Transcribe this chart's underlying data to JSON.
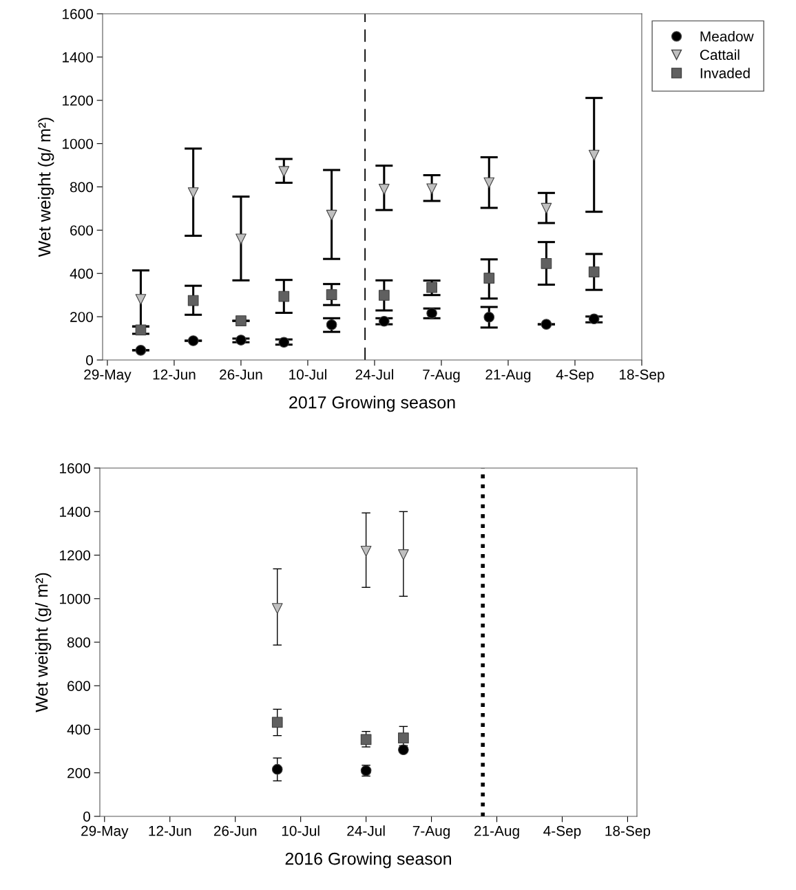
{
  "chart_data": [
    {
      "type": "scatter",
      "xlabel": "2017 Growing season",
      "ylabel": "Wet weight (g/ m²)",
      "xlim": [
        "2017-05-28",
        "2017-09-18"
      ],
      "xticks": [
        {
          "value": "2017-05-29",
          "label": "29-May"
        },
        {
          "value": "2017-06-12",
          "label": "12-Jun"
        },
        {
          "value": "2017-06-26",
          "label": "26-Jun"
        },
        {
          "value": "2017-07-10",
          "label": "10-Jul"
        },
        {
          "value": "2017-07-24",
          "label": "24-Jul"
        },
        {
          "value": "2017-08-07",
          "label": "7-Aug"
        },
        {
          "value": "2017-08-21",
          "label": "21-Aug"
        },
        {
          "value": "2017-09-04",
          "label": "4-Sep"
        },
        {
          "value": "2017-09-18",
          "label": "18-Sep"
        }
      ],
      "ylim": [
        0,
        1600
      ],
      "yticks": [
        0,
        200,
        400,
        600,
        800,
        1000,
        1200,
        1400,
        1600
      ],
      "grid": false,
      "legend": "top right",
      "ref_lines": [
        {
          "axis": "x",
          "value": "2017-07-22",
          "color": "#000000",
          "line_style": "dashed"
        }
      ],
      "x": [
        "2017-06-05",
        "2017-06-16",
        "2017-06-26",
        "2017-07-05",
        "2017-07-15",
        "2017-07-26",
        "2017-08-05",
        "2017-08-17",
        "2017-08-29",
        "2017-09-08"
      ],
      "series": [
        {
          "name": "Meadow",
          "color": "#000000",
          "marker": "circle",
          "values": [
            45,
            89,
            92,
            82,
            163,
            179,
            216,
            198,
            165,
            190
          ],
          "errors": [
            null,
            null,
            [
              82,
              99
            ],
            [
              71,
              95
            ],
            [
              130,
              193
            ],
            [
              165,
              193
            ],
            [
              193,
              238
            ],
            [
              150,
              245
            ],
            null,
            [
              174,
              201
            ]
          ]
        },
        {
          "name": "Cattail",
          "color": "#c0c0c0",
          "marker": "triangle",
          "values": [
            280,
            773,
            559,
            871,
            669,
            789,
            791,
            819,
            701,
            946
          ],
          "errors": [
            [
              155,
              414
            ],
            [
              574,
              977
            ],
            [
              368,
              755
            ],
            [
              819,
              929
            ],
            [
              467,
              878
            ],
            [
              693,
              898
            ],
            [
              735,
              854
            ],
            [
              703,
              937
            ],
            [
              633,
              772
            ],
            [
              685,
              1211
            ]
          ]
        },
        {
          "name": "Invaded",
          "color": "#606060",
          "marker": "square",
          "values": [
            139,
            275,
            181,
            294,
            302,
            299,
            335,
            378,
            446,
            407
          ],
          "errors": [
            [
              121,
              155
            ],
            [
              209,
              343
            ],
            null,
            [
              218,
              370
            ],
            [
              254,
              351
            ],
            [
              229,
              368
            ],
            [
              300,
              367
            ],
            [
              284,
              465
            ],
            [
              348,
              545
            ],
            [
              324,
              490
            ]
          ]
        }
      ]
    },
    {
      "type": "scatter",
      "xlabel": "2016 Growing season",
      "ylabel": "Wet weight (g/ m²)",
      "xlim": [
        "2016-05-28",
        "2016-09-20"
      ],
      "xticks": [
        {
          "value": "2016-05-29",
          "label": "29-May"
        },
        {
          "value": "2016-06-12",
          "label": "12-Jun"
        },
        {
          "value": "2016-06-26",
          "label": "26-Jun"
        },
        {
          "value": "2016-07-10",
          "label": "10-Jul"
        },
        {
          "value": "2016-07-24",
          "label": "24-Jul"
        },
        {
          "value": "2016-08-07",
          "label": "7-Aug"
        },
        {
          "value": "2016-08-21",
          "label": "21-Aug"
        },
        {
          "value": "2016-09-04",
          "label": "4-Sep"
        },
        {
          "value": "2016-09-18",
          "label": "18-Sep"
        }
      ],
      "ylim": [
        0,
        1600
      ],
      "yticks": [
        0,
        200,
        400,
        600,
        800,
        1000,
        1200,
        1400,
        1600
      ],
      "grid": false,
      "ref_lines": [
        {
          "axis": "x",
          "value": "2016-08-18",
          "color": "#000000",
          "line_style": "dotted"
        }
      ],
      "x": [
        "2016-07-05",
        "2016-07-24",
        "2016-08-01"
      ],
      "series": [
        {
          "color": "#000000",
          "marker": "circle",
          "values": [
            216,
            210,
            306
          ],
          "errors": [
            [
              163,
              268
            ],
            [
              185,
              235
            ],
            [
              294,
              318
            ]
          ]
        },
        {
          "color": "#c0c0c0",
          "marker": "triangle",
          "values": [
            955,
            1218,
            1202
          ],
          "errors": [
            [
              787,
              1137
            ],
            [
              1052,
              1394
            ],
            [
              1011,
              1400
            ]
          ]
        },
        {
          "color": "#606060",
          "marker": "square",
          "values": [
            432,
            353,
            360
          ],
          "errors": [
            [
              371,
              492
            ],
            [
              319,
              390
            ],
            [
              325,
              413
            ]
          ]
        }
      ]
    }
  ]
}
